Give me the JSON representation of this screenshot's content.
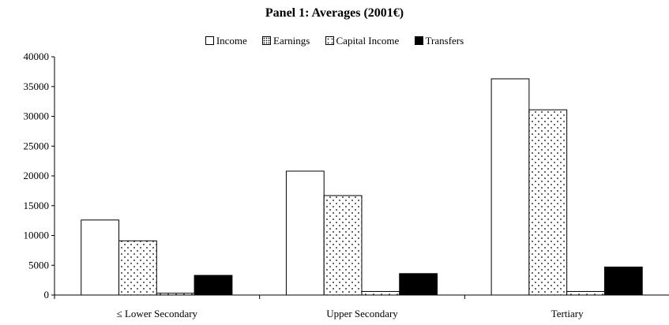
{
  "chart_data": {
    "type": "bar",
    "title": "Panel 1: Averages (2001€)",
    "xlabel": "",
    "ylabel": "",
    "categories": [
      "≤ Lower Secondary",
      "Upper Secondary",
      "Tertiary"
    ],
    "series": [
      {
        "name": "Income",
        "values": [
          12600,
          20800,
          36300
        ],
        "fill": "#ffffff",
        "pattern": "none"
      },
      {
        "name": "Earnings",
        "values": [
          9100,
          16700,
          31100
        ],
        "fill": "#ffffff",
        "pattern": "dots"
      },
      {
        "name": "Capital Income",
        "values": [
          300,
          600,
          600
        ],
        "fill": "#ffffff",
        "pattern": "sparse-dots"
      },
      {
        "name": "Transfers",
        "values": [
          3300,
          3600,
          4700
        ],
        "fill": "#000000",
        "pattern": "solid"
      }
    ],
    "ylim": [
      0,
      40000
    ],
    "yticks": [
      "0",
      "5000",
      "10000",
      "15000",
      "20000",
      "25000",
      "30000",
      "35000",
      "40000"
    ],
    "grid": false,
    "legend_position": "top-center"
  }
}
